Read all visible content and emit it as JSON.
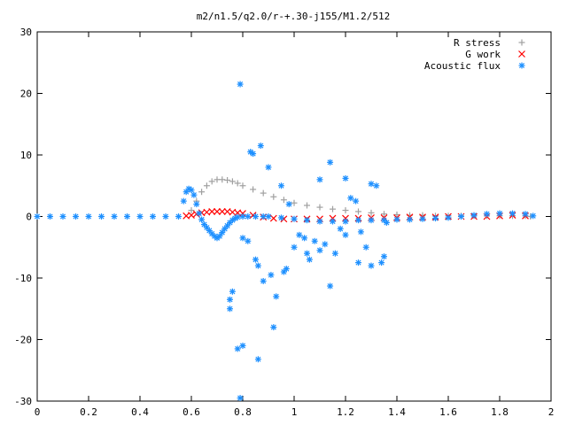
{
  "chart_data": {
    "type": "scatter",
    "title": "m2/n1.5/q2.0/r-+.30-j155/M1.2/512",
    "xlabel": "",
    "ylabel": "",
    "xlim": [
      0,
      2
    ],
    "ylim": [
      -30,
      30
    ],
    "x_ticks": [
      "0",
      "0.2",
      "0.4",
      "0.6",
      "0.8",
      "1",
      "1.2",
      "1.4",
      "1.6",
      "1.8",
      "2"
    ],
    "y_ticks": [
      "30",
      "20",
      "10",
      "0",
      "-10",
      "-20",
      "-30"
    ],
    "grid": false,
    "legend_position": "top-right",
    "series": [
      {
        "name": "R stress",
        "marker": "+",
        "color": "#a0a0a0",
        "x": [
          0.6,
          0.62,
          0.64,
          0.66,
          0.68,
          0.7,
          0.72,
          0.74,
          0.76,
          0.78,
          0.8,
          0.84,
          0.88,
          0.92,
          0.96,
          1.0,
          1.05,
          1.1,
          1.15,
          1.2,
          1.25,
          1.3,
          1.35,
          1.4,
          1.45,
          1.5,
          1.55,
          1.6,
          1.65,
          1.7,
          1.75,
          1.8,
          1.85,
          1.9,
          1.92
        ],
        "y": [
          1.0,
          2.5,
          4.0,
          5.0,
          5.7,
          6.0,
          6.0,
          5.9,
          5.7,
          5.4,
          5.0,
          4.4,
          3.8,
          3.2,
          2.7,
          2.2,
          1.8,
          1.5,
          1.2,
          1.0,
          0.8,
          0.6,
          0.4,
          0.3,
          0.2,
          0.2,
          0.1,
          0.1,
          0.1,
          0.1,
          0.1,
          0.1,
          0.1,
          0.1,
          0.0
        ]
      },
      {
        "name": "G work",
        "marker": "x",
        "color": "#ff0000",
        "x": [
          0.58,
          0.6,
          0.62,
          0.64,
          0.66,
          0.68,
          0.7,
          0.72,
          0.74,
          0.76,
          0.78,
          0.8,
          0.84,
          0.88,
          0.92,
          0.96,
          1.0,
          1.05,
          1.1,
          1.15,
          1.2,
          1.25,
          1.3,
          1.35,
          1.4,
          1.45,
          1.5,
          1.55,
          1.6,
          1.65,
          1.7,
          1.75,
          1.8,
          1.85,
          1.9
        ],
        "y": [
          0.1,
          0.2,
          0.4,
          0.6,
          0.7,
          0.8,
          0.8,
          0.8,
          0.8,
          0.7,
          0.6,
          0.5,
          0.2,
          -0.1,
          -0.3,
          -0.4,
          -0.4,
          -0.4,
          -0.4,
          -0.3,
          -0.3,
          -0.3,
          -0.2,
          -0.2,
          -0.2,
          -0.1,
          -0.1,
          -0.1,
          0.0,
          0.0,
          0.0,
          0.0,
          0.1,
          0.2,
          0.1
        ]
      },
      {
        "name": "Acoustic flux",
        "marker": "*",
        "color": "#1e90ff",
        "x": [
          0.0,
          0.05,
          0.1,
          0.15,
          0.2,
          0.25,
          0.3,
          0.35,
          0.4,
          0.45,
          0.5,
          0.55,
          0.57,
          0.58,
          0.59,
          0.6,
          0.61,
          0.62,
          0.63,
          0.64,
          0.65,
          0.66,
          0.67,
          0.68,
          0.69,
          0.7,
          0.71,
          0.72,
          0.73,
          0.74,
          0.75,
          0.76,
          0.77,
          0.78,
          0.8,
          0.82,
          0.85,
          0.88,
          0.9,
          0.95,
          1.0,
          1.05,
          1.1,
          1.15,
          1.2,
          1.25,
          1.3,
          1.35,
          1.4,
          1.45,
          1.5,
          1.55,
          1.6,
          1.65,
          1.7,
          1.75,
          1.8,
          1.85,
          1.9,
          1.93,
          0.79,
          0.83,
          0.87,
          0.84,
          0.82,
          0.85,
          0.9,
          0.95,
          1.05,
          1.1,
          1.14,
          1.2,
          1.3,
          1.32,
          0.75,
          0.78,
          0.8,
          0.86,
          0.92,
          0.75,
          0.79,
          0.8,
          0.76,
          0.86,
          0.91,
          1.14,
          1.25,
          1.3,
          1.0,
          1.02,
          0.98,
          1.06,
          1.12,
          1.18,
          1.22,
          1.28,
          1.35,
          0.96,
          1.04,
          1.16,
          1.26,
          0.93,
          0.97,
          1.08,
          1.24,
          1.34,
          0.88,
          1.1,
          1.2,
          1.36
        ],
        "y": [
          0.0,
          0.0,
          0.0,
          0.0,
          0.0,
          0.0,
          0.0,
          0.0,
          0.0,
          0.0,
          0.0,
          0.0,
          2.5,
          4.0,
          4.5,
          4.3,
          3.5,
          2.0,
          0.5,
          -0.5,
          -1.3,
          -1.8,
          -2.3,
          -2.8,
          -3.2,
          -3.5,
          -3.2,
          -2.6,
          -2.0,
          -1.5,
          -1.0,
          -0.6,
          -0.3,
          -0.1,
          0.0,
          0.0,
          0.0,
          0.0,
          0.0,
          -0.2,
          -0.4,
          -0.6,
          -0.8,
          -0.8,
          -0.8,
          -0.6,
          -0.6,
          -0.6,
          -0.5,
          -0.5,
          -0.4,
          -0.3,
          -0.2,
          0.0,
          0.2,
          0.4,
          0.5,
          0.5,
          0.4,
          0.1,
          21.5,
          10.5,
          11.5,
          10.2,
          -4.0,
          -7.0,
          8.0,
          5.0,
          -6.0,
          6.0,
          8.8,
          6.2,
          5.3,
          5.0,
          -13.5,
          -21.5,
          -21.0,
          -23.2,
          -18.0,
          -15.0,
          -29.5,
          -3.5,
          -12.2,
          -8.0,
          -9.5,
          -11.3,
          -7.5,
          -8.0,
          -5.0,
          -3.0,
          2.0,
          -7.0,
          -4.5,
          -2.0,
          3.0,
          -5.0,
          -6.5,
          -9.0,
          -3.5,
          -6.0,
          -2.5,
          -13.0,
          -8.5,
          -4.0,
          2.5,
          -7.5,
          -10.5,
          -5.5,
          -3.0,
          -1.0
        ]
      }
    ]
  }
}
